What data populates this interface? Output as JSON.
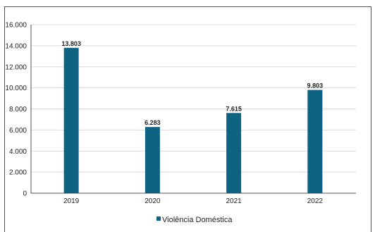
{
  "chart_data": {
    "type": "bar",
    "categories": [
      "2019",
      "2020",
      "2021",
      "2022"
    ],
    "series": [
      {
        "name": "Violência Doméstica",
        "values": [
          13803,
          6283,
          7615,
          9803
        ],
        "value_labels": [
          "13.803",
          "6.283",
          "7.615",
          "9.803"
        ],
        "color": "#0e6382"
      }
    ],
    "y_ticks": [
      {
        "value": 0,
        "label": "0"
      },
      {
        "value": 2000,
        "label": "2.000"
      },
      {
        "value": 4000,
        "label": "4.000"
      },
      {
        "value": 6000,
        "label": "6.000"
      },
      {
        "value": 8000,
        "label": "8.000"
      },
      {
        "value": 10000,
        "label": "10.000"
      },
      {
        "value": 12000,
        "label": "12.000"
      },
      {
        "value": 14000,
        "label": "14.000"
      },
      {
        "value": 16000,
        "label": "16.000"
      }
    ],
    "ylim": [
      0,
      16000
    ],
    "grid": true,
    "legend_position": "bottom",
    "title": "",
    "xlabel": "",
    "ylabel": ""
  },
  "colors": {
    "bar": "#0e6382",
    "grid": "#d9d9d9",
    "axis": "#555555"
  }
}
